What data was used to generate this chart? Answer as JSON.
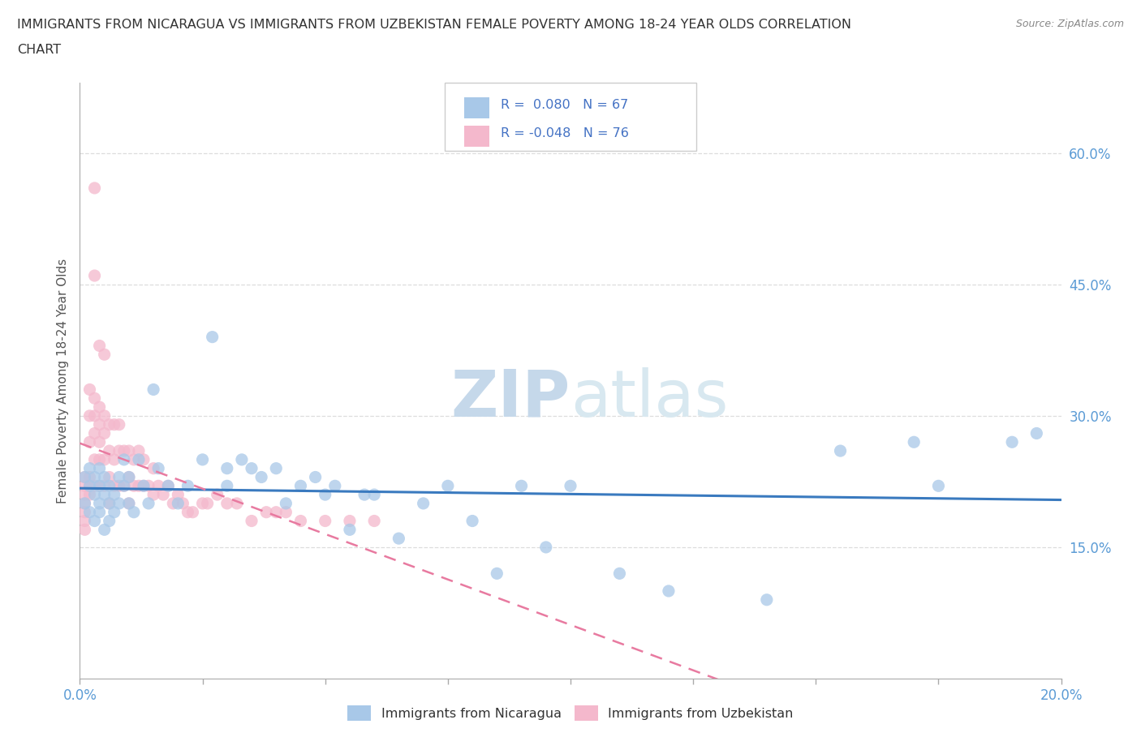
{
  "title_line1": "IMMIGRANTS FROM NICARAGUA VS IMMIGRANTS FROM UZBEKISTAN FEMALE POVERTY AMONG 18-24 YEAR OLDS CORRELATION",
  "title_line2": "CHART",
  "source": "Source: ZipAtlas.com",
  "ylabel": "Female Poverty Among 18-24 Year Olds",
  "xlim": [
    0.0,
    0.2
  ],
  "ylim": [
    0.0,
    0.68
  ],
  "xticks": [
    0.0,
    0.025,
    0.05,
    0.075,
    0.1,
    0.125,
    0.15,
    0.175,
    0.2
  ],
  "yticks_right": [
    0.15,
    0.3,
    0.45,
    0.6
  ],
  "ytick_right_labels": [
    "15.0%",
    "30.0%",
    "45.0%",
    "60.0%"
  ],
  "nicaragua_color": "#a8c8e8",
  "uzbekistan_color": "#f4b8cc",
  "nicaragua_R": 0.08,
  "nicaragua_N": 67,
  "uzbekistan_R": -0.048,
  "uzbekistan_N": 76,
  "trend_nicaragua_color": "#3a7abf",
  "trend_uzbekistan_color": "#e87aa0",
  "watermark": "ZIPatlas",
  "watermark_color": "#d5e5f0",
  "background_color": "#ffffff",
  "grid_color": "#dddddd",
  "nicaragua_x": [
    0.001,
    0.001,
    0.002,
    0.002,
    0.002,
    0.003,
    0.003,
    0.003,
    0.004,
    0.004,
    0.004,
    0.004,
    0.005,
    0.005,
    0.005,
    0.006,
    0.006,
    0.006,
    0.007,
    0.007,
    0.008,
    0.008,
    0.009,
    0.009,
    0.01,
    0.01,
    0.011,
    0.012,
    0.013,
    0.014,
    0.015,
    0.016,
    0.018,
    0.02,
    0.022,
    0.025,
    0.027,
    0.03,
    0.03,
    0.033,
    0.035,
    0.037,
    0.04,
    0.042,
    0.045,
    0.048,
    0.05,
    0.052,
    0.055,
    0.058,
    0.06,
    0.065,
    0.07,
    0.075,
    0.08,
    0.085,
    0.09,
    0.095,
    0.1,
    0.11,
    0.12,
    0.14,
    0.155,
    0.17,
    0.175,
    0.19,
    0.195
  ],
  "nicaragua_y": [
    0.2,
    0.23,
    0.19,
    0.22,
    0.24,
    0.21,
    0.23,
    0.18,
    0.2,
    0.22,
    0.24,
    0.19,
    0.21,
    0.23,
    0.17,
    0.2,
    0.22,
    0.18,
    0.21,
    0.19,
    0.23,
    0.2,
    0.22,
    0.25,
    0.2,
    0.23,
    0.19,
    0.25,
    0.22,
    0.2,
    0.33,
    0.24,
    0.22,
    0.2,
    0.22,
    0.25,
    0.39,
    0.22,
    0.24,
    0.25,
    0.24,
    0.23,
    0.24,
    0.2,
    0.22,
    0.23,
    0.21,
    0.22,
    0.17,
    0.21,
    0.21,
    0.16,
    0.2,
    0.22,
    0.18,
    0.12,
    0.22,
    0.15,
    0.22,
    0.12,
    0.1,
    0.09,
    0.26,
    0.27,
    0.22,
    0.27,
    0.28
  ],
  "uzbekistan_x": [
    0.001,
    0.001,
    0.001,
    0.001,
    0.001,
    0.001,
    0.001,
    0.002,
    0.002,
    0.002,
    0.002,
    0.002,
    0.002,
    0.003,
    0.003,
    0.003,
    0.003,
    0.003,
    0.004,
    0.004,
    0.004,
    0.004,
    0.004,
    0.005,
    0.005,
    0.005,
    0.005,
    0.006,
    0.006,
    0.006,
    0.006,
    0.007,
    0.007,
    0.007,
    0.008,
    0.008,
    0.008,
    0.009,
    0.009,
    0.01,
    0.01,
    0.01,
    0.011,
    0.011,
    0.012,
    0.012,
    0.013,
    0.013,
    0.014,
    0.015,
    0.015,
    0.016,
    0.017,
    0.018,
    0.019,
    0.02,
    0.021,
    0.022,
    0.023,
    0.025,
    0.026,
    0.028,
    0.03,
    0.032,
    0.035,
    0.038,
    0.04,
    0.042,
    0.045,
    0.05,
    0.055,
    0.06,
    0.003,
    0.003,
    0.004,
    0.005
  ],
  "uzbekistan_y": [
    0.21,
    0.23,
    0.22,
    0.2,
    0.19,
    0.18,
    0.17,
    0.33,
    0.3,
    0.27,
    0.23,
    0.22,
    0.21,
    0.32,
    0.3,
    0.28,
    0.25,
    0.22,
    0.31,
    0.29,
    0.27,
    0.25,
    0.22,
    0.3,
    0.28,
    0.25,
    0.22,
    0.29,
    0.26,
    0.23,
    0.2,
    0.29,
    0.25,
    0.22,
    0.29,
    0.26,
    0.22,
    0.26,
    0.22,
    0.26,
    0.23,
    0.2,
    0.25,
    0.22,
    0.26,
    0.22,
    0.25,
    0.22,
    0.22,
    0.24,
    0.21,
    0.22,
    0.21,
    0.22,
    0.2,
    0.21,
    0.2,
    0.19,
    0.19,
    0.2,
    0.2,
    0.21,
    0.2,
    0.2,
    0.18,
    0.19,
    0.19,
    0.19,
    0.18,
    0.18,
    0.18,
    0.18,
    0.46,
    0.56,
    0.38,
    0.37
  ]
}
